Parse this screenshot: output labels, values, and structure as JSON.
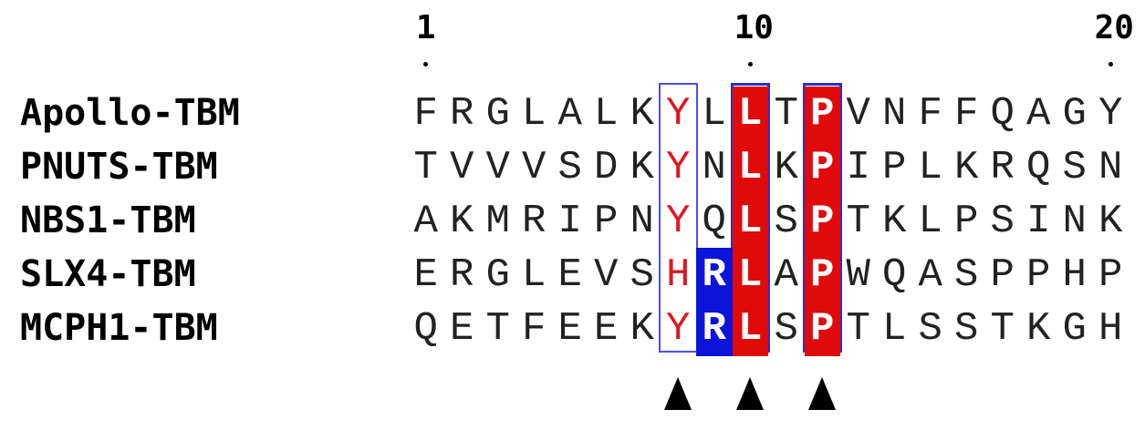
{
  "positions": [
    {
      "label": "1",
      "col": 1
    },
    {
      "label": "10",
      "col": 10
    },
    {
      "label": "20",
      "col": 20
    }
  ],
  "sequences": [
    {
      "name": "Apollo-TBM",
      "residues": "FRGLALKYLLTPVNFFQAGY"
    },
    {
      "name": "PNUTS-TBM",
      "residues": "TVVVSDKYNLKPIPLKRQSN"
    },
    {
      "name": "NBS1-TBM",
      "residues": "AKMRIPNYQLSPTKLPSINK"
    },
    {
      "name": "SLX4-TBM",
      "residues": "ERGLEVSHRLAPWQASPPHP"
    },
    {
      "name": "MCPH1-TBM",
      "residues": "QETFEEKYRLSPTLSSTKGH"
    }
  ],
  "conserved_columns": [
    {
      "col": 8,
      "style": "red-text"
    },
    {
      "col": 10,
      "style": "red-bg"
    },
    {
      "col": 12,
      "style": "red-bg"
    }
  ],
  "blue_residues": [
    {
      "row": 3,
      "col": 9
    },
    {
      "row": 4,
      "col": 9
    }
  ],
  "arrow_columns": [
    8,
    10,
    12
  ],
  "colors": {
    "identity_bg": "#e00a0a",
    "similar_text": "#e0161f",
    "blue_highlight": "#0b14d8",
    "box_border": "#4a50e6"
  }
}
